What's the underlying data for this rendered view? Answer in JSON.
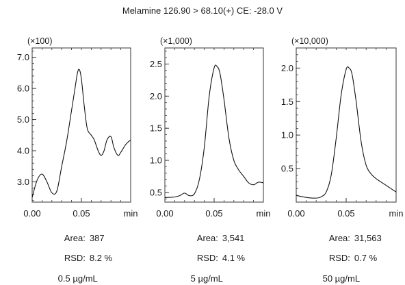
{
  "figure": {
    "title": "Melamine 126.90 > 68.10(+) CE: -28.0 V"
  },
  "chart_data": [
    {
      "type": "line",
      "scale_label": "(×100)",
      "xlim": [
        0.0,
        0.1
      ],
      "ylim": [
        2.35,
        7.3
      ],
      "x_ticks": [
        {
          "value": 0.0,
          "label": "0.00"
        },
        {
          "value": 0.05,
          "label": "0.05"
        }
      ],
      "x_unit": "min",
      "y_ticks": [
        {
          "value": 3.0,
          "label": "3.0"
        },
        {
          "value": 4.0,
          "label": "4.0"
        },
        {
          "value": 5.0,
          "label": "5.0"
        },
        {
          "value": 6.0,
          "label": "6.0"
        },
        {
          "value": 7.0,
          "label": "7.0"
        }
      ],
      "series": [
        {
          "x": [
            0.0,
            0.005,
            0.01,
            0.015,
            0.02,
            0.025,
            0.03,
            0.035,
            0.04,
            0.043,
            0.046,
            0.048,
            0.05,
            0.053,
            0.056,
            0.06,
            0.063,
            0.067,
            0.07,
            0.073,
            0.076,
            0.08,
            0.083,
            0.087,
            0.09,
            0.095,
            0.1
          ],
          "y": [
            2.5,
            3.05,
            3.25,
            3.0,
            2.65,
            2.7,
            3.5,
            4.3,
            5.3,
            5.9,
            6.5,
            6.6,
            6.3,
            5.4,
            4.7,
            4.5,
            4.35,
            4.0,
            3.85,
            4.0,
            4.35,
            4.45,
            4.1,
            3.85,
            3.95,
            4.2,
            4.35
          ]
        }
      ],
      "stats": {
        "area_label": "Area:",
        "area_value": "387",
        "rsd_label": "RSD:",
        "rsd_value": "8.2 %",
        "concentration": "0.5 µg/mL"
      }
    },
    {
      "type": "line",
      "scale_label": "(×1,000)",
      "xlim": [
        0.0,
        0.1
      ],
      "ylim": [
        0.35,
        2.75
      ],
      "x_ticks": [
        {
          "value": 0.0,
          "label": "0.00"
        },
        {
          "value": 0.05,
          "label": "0.05"
        }
      ],
      "x_unit": "min",
      "y_ticks": [
        {
          "value": 0.5,
          "label": "0.5"
        },
        {
          "value": 1.0,
          "label": "1.0"
        },
        {
          "value": 1.5,
          "label": "1.5"
        },
        {
          "value": 2.0,
          "label": "2.0"
        },
        {
          "value": 2.5,
          "label": "2.5"
        }
      ],
      "series": [
        {
          "x": [
            0.0,
            0.01,
            0.015,
            0.02,
            0.025,
            0.03,
            0.035,
            0.04,
            0.045,
            0.05,
            0.053,
            0.056,
            0.06,
            0.065,
            0.07,
            0.075,
            0.08,
            0.085,
            0.09,
            0.095,
            0.1
          ],
          "y": [
            0.42,
            0.43,
            0.45,
            0.49,
            0.45,
            0.48,
            0.7,
            1.2,
            2.0,
            2.44,
            2.46,
            2.35,
            1.95,
            1.35,
            1.0,
            0.85,
            0.75,
            0.65,
            0.62,
            0.66,
            0.65
          ]
        }
      ],
      "stats": {
        "area_label": "Area:",
        "area_value": "3,541",
        "rsd_label": "RSD:",
        "rsd_value": "4.1 %",
        "concentration": "5 µg/mL"
      }
    },
    {
      "type": "line",
      "scale_label": "(×10,000)",
      "xlim": [
        0.0,
        0.1
      ],
      "ylim": [
        0.0,
        2.3
      ],
      "x_ticks": [
        {
          "value": 0.0,
          "label": "0.00"
        },
        {
          "value": 0.05,
          "label": "0.05"
        }
      ],
      "x_unit": "min",
      "y_ticks": [
        {
          "value": 0.5,
          "label": "0.5"
        },
        {
          "value": 1.0,
          "label": "1.0"
        },
        {
          "value": 1.5,
          "label": "1.5"
        },
        {
          "value": 2.0,
          "label": "2.0"
        }
      ],
      "series": [
        {
          "x": [
            0.0,
            0.01,
            0.02,
            0.025,
            0.03,
            0.035,
            0.04,
            0.045,
            0.05,
            0.053,
            0.056,
            0.06,
            0.065,
            0.07,
            0.075,
            0.08,
            0.09,
            0.1
          ],
          "y": [
            0.1,
            0.07,
            0.06,
            0.08,
            0.15,
            0.4,
            0.95,
            1.6,
            1.98,
            2.0,
            1.9,
            1.5,
            0.9,
            0.55,
            0.42,
            0.35,
            0.25,
            0.15
          ]
        }
      ],
      "stats": {
        "area_label": "Area:",
        "area_value": "31,563",
        "rsd_label": "RSD:",
        "rsd_value": "0.7 %",
        "concentration": "50 µg/mL"
      }
    }
  ]
}
